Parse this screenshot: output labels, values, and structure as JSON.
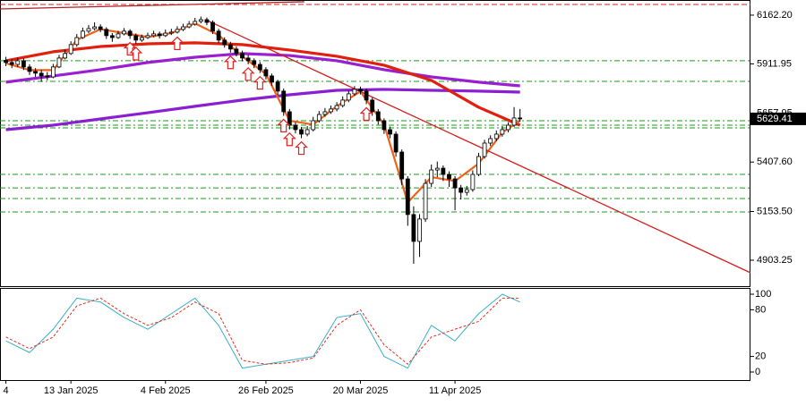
{
  "chart_data": [
    {
      "type": "candlestick",
      "categories": [
        "4",
        null,
        null,
        null,
        null,
        null,
        null,
        null,
        null,
        null,
        null,
        "13 Jan 2025",
        null,
        null,
        null,
        null,
        null,
        null,
        null,
        null,
        null,
        null,
        null,
        null,
        null,
        null,
        null,
        "4 Feb 2025",
        null,
        null,
        null,
        null,
        null,
        null,
        null,
        null,
        null,
        null,
        null,
        null,
        null,
        null,
        null,
        null,
        "26 Feb 2025",
        null,
        null,
        null,
        null,
        null,
        null,
        null,
        null,
        null,
        null,
        null,
        null,
        null,
        null,
        null,
        "20 Mar 2025",
        null,
        null,
        null,
        null,
        null,
        null,
        null,
        null,
        null,
        null,
        null,
        null,
        null,
        null,
        null,
        "11 Apr 2025",
        null,
        null,
        null,
        null,
        null,
        null,
        null,
        null,
        null,
        null,
        null
      ],
      "ohlc": [
        [
          5930,
          5948,
          5900,
          5919
        ],
        [
          5919,
          5935,
          5890,
          5909
        ],
        [
          5909,
          5945,
          5895,
          5928
        ],
        [
          5928,
          5940,
          5880,
          5896
        ],
        [
          5896,
          5910,
          5855,
          5873
        ],
        [
          5873,
          5890,
          5845,
          5864
        ],
        [
          5864,
          5880,
          5820,
          5850
        ],
        [
          5850,
          5870,
          5828,
          5845
        ],
        [
          5845,
          5912,
          5838,
          5896
        ],
        [
          5896,
          5958,
          5890,
          5942
        ],
        [
          5942,
          5985,
          5935,
          5965
        ],
        [
          5965,
          6028,
          5958,
          6011
        ],
        [
          6011,
          6065,
          6000,
          6047
        ],
        [
          6047,
          6098,
          6040,
          6080
        ],
        [
          6080,
          6112,
          6070,
          6093
        ],
        [
          6093,
          6125,
          6085,
          6102
        ],
        [
          6102,
          6115,
          6075,
          6089
        ],
        [
          6089,
          6100,
          6040,
          6057
        ],
        [
          6057,
          6070,
          6025,
          6047
        ],
        [
          6047,
          6082,
          6040,
          6066
        ],
        [
          6066,
          6096,
          6058,
          6080
        ],
        [
          6080,
          6090,
          6040,
          6057
        ],
        [
          6057,
          6068,
          6015,
          6034
        ],
        [
          6034,
          6062,
          6025,
          6047
        ],
        [
          6047,
          6072,
          6040,
          6057
        ],
        [
          6057,
          6082,
          6048,
          6066
        ],
        [
          6066,
          6078,
          6042,
          6057
        ],
        [
          6057,
          6088,
          6050,
          6070
        ],
        [
          6070,
          6092,
          6060,
          6075
        ],
        [
          6075,
          6105,
          6068,
          6089
        ],
        [
          6089,
          6118,
          6080,
          6102
        ],
        [
          6102,
          6132,
          6095,
          6116
        ],
        [
          6116,
          6148,
          6108,
          6130
        ],
        [
          6130,
          6155,
          6120,
          6139
        ],
        [
          6139,
          6150,
          6110,
          6125
        ],
        [
          6125,
          6135,
          6065,
          6080
        ],
        [
          6080,
          6092,
          6018,
          6034
        ],
        [
          6034,
          6048,
          5995,
          6011
        ],
        [
          6011,
          6025,
          5970,
          5988
        ],
        [
          5988,
          6002,
          5950,
          5965
        ],
        [
          5965,
          5980,
          5925,
          5942
        ],
        [
          5942,
          5958,
          5910,
          5928
        ],
        [
          5928,
          5940,
          5890,
          5909
        ],
        [
          5909,
          5922,
          5865,
          5882
        ],
        [
          5882,
          5895,
          5832,
          5850
        ],
        [
          5850,
          5862,
          5800,
          5818
        ],
        [
          5818,
          5830,
          5752,
          5772
        ],
        [
          5772,
          5785,
          5645,
          5666
        ],
        [
          5666,
          5680,
          5575,
          5597
        ],
        [
          5597,
          5612,
          5555,
          5574
        ],
        [
          5574,
          5588,
          5530,
          5551
        ],
        [
          5551,
          5592,
          5540,
          5574
        ],
        [
          5574,
          5640,
          5565,
          5620
        ],
        [
          5620,
          5670,
          5610,
          5652
        ],
        [
          5652,
          5685,
          5640,
          5666
        ],
        [
          5666,
          5698,
          5655,
          5680
        ],
        [
          5680,
          5715,
          5668,
          5698
        ],
        [
          5698,
          5745,
          5688,
          5726
        ],
        [
          5726,
          5775,
          5715,
          5758
        ],
        [
          5758,
          5798,
          5748,
          5781
        ],
        [
          5781,
          5795,
          5755,
          5772
        ],
        [
          5772,
          5785,
          5705,
          5726
        ],
        [
          5726,
          5738,
          5645,
          5666
        ],
        [
          5666,
          5680,
          5600,
          5620
        ],
        [
          5620,
          5632,
          5552,
          5574
        ],
        [
          5574,
          5590,
          5530,
          5551
        ],
        [
          5551,
          5565,
          5435,
          5459
        ],
        [
          5459,
          5472,
          5290,
          5321
        ],
        [
          5321,
          5335,
          5080,
          5138
        ],
        [
          5138,
          5180,
          4885,
          5000
        ],
        [
          5000,
          5140,
          4920,
          5115
        ],
        [
          5115,
          5320,
          5100,
          5298
        ],
        [
          5298,
          5395,
          5280,
          5367
        ],
        [
          5367,
          5410,
          5330,
          5376
        ],
        [
          5376,
          5390,
          5310,
          5344
        ],
        [
          5344,
          5360,
          5280,
          5321
        ],
        [
          5321,
          5335,
          5160,
          5275
        ],
        [
          5275,
          5290,
          5215,
          5252
        ],
        [
          5252,
          5285,
          5235,
          5266
        ],
        [
          5266,
          5365,
          5255,
          5344
        ],
        [
          5344,
          5455,
          5335,
          5436
        ],
        [
          5436,
          5522,
          5425,
          5505
        ],
        [
          5505,
          5545,
          5490,
          5528
        ],
        [
          5528,
          5570,
          5515,
          5551
        ],
        [
          5551,
          5592,
          5538,
          5574
        ],
        [
          5574,
          5612,
          5560,
          5597
        ],
        [
          5597,
          5690,
          5588,
          5634
        ],
        [
          5634,
          5680,
          5615,
          5629.41
        ]
      ],
      "up_color": "#ffffff",
      "down_color": "#000000",
      "xlim": [
        -1,
        126
      ],
      "ylim": [
        4770,
        6240
      ],
      "yticks": [
        {
          "value": 6162.2,
          "label": "6162.20"
        },
        5911.95,
        5657.95,
        {
          "value": 5407.6,
          "label": "5407.60"
        },
        {
          "value": 5153.5,
          "label": "5153.50"
        },
        4903.25
      ],
      "last_price": 5629.41,
      "series": [
        {
          "color": "#9a1fd0",
          "x": [
            0,
            8,
            16,
            24,
            32,
            40,
            48,
            56,
            64,
            72,
            80,
            87
          ],
          "values": [
            5818,
            5850,
            5882,
            5919,
            5946,
            5965,
            5955,
            5928,
            5882,
            5845,
            5818,
            5799
          ]
        },
        {
          "color": "#8a1ed0",
          "x": [
            0,
            8,
            16,
            24,
            32,
            40,
            48,
            56,
            64,
            72,
            80,
            87
          ],
          "values": [
            5574,
            5597,
            5629,
            5661,
            5694,
            5726,
            5753,
            5776,
            5781,
            5776,
            5772,
            5767
          ]
        },
        {
          "color": "#e0200c",
          "x": [
            0,
            8,
            16,
            24,
            32,
            40,
            48,
            56,
            64,
            72,
            80,
            87
          ],
          "values": [
            5928,
            5974,
            6001,
            6015,
            6020,
            6011,
            5983,
            5951,
            5905,
            5827,
            5689,
            5597
          ]
        },
        {
          "color": "#f2601a",
          "x": [
            0,
            4,
            8,
            12,
            16,
            20,
            24,
            28,
            32,
            36,
            40,
            44,
            48,
            52,
            56,
            60,
            64,
            68,
            72,
            76,
            80,
            84,
            87
          ],
          "values": [
            5915,
            5880,
            5880,
            6035,
            6090,
            6070,
            6050,
            6070,
            6120,
            6060,
            5950,
            5860,
            5620,
            5600,
            5695,
            5770,
            5600,
            5200,
            5330,
            5310,
            5400,
            5560,
            5620
          ]
        }
      ],
      "trendlines": [
        {
          "color": "#d42020",
          "x": [
            33.8,
            126
          ],
          "values": [
            6139,
            4839
          ]
        },
        {
          "color": "#b02020",
          "x": [
            -1,
            50.5
          ],
          "values": [
            6194,
            6231
          ]
        }
      ],
      "levels": [
        5928,
        5822,
        5620,
        5597,
        5583,
        5344,
        5275,
        5220,
        5151
      ],
      "level_color": "#1a9a1a",
      "resistance_level": 6217,
      "resistance_color": "#d42020",
      "signals": [
        21,
        22,
        29,
        38,
        41,
        43,
        47,
        48,
        50,
        61
      ],
      "signal_color": "#e02020"
    },
    {
      "type": "line",
      "ylim": [
        0,
        100
      ],
      "yticks": [
        100,
        80,
        20,
        0
      ],
      "xlim": [
        -1,
        126
      ],
      "series": [
        {
          "color": "#3ab0c8",
          "dash": false,
          "x": [
            0,
            4,
            8,
            12,
            16,
            20,
            24,
            28,
            32,
            36,
            40,
            44,
            48,
            52,
            56,
            60,
            64,
            68,
            72,
            76,
            80,
            84,
            87
          ],
          "values": [
            40,
            25,
            55,
            95,
            90,
            70,
            55,
            75,
            95,
            60,
            5,
            10,
            15,
            20,
            70,
            75,
            20,
            5,
            60,
            40,
            75,
            100,
            90
          ]
        },
        {
          "color": "#e03020",
          "dash": true,
          "x": [
            0,
            4,
            8,
            12,
            16,
            20,
            24,
            28,
            32,
            36,
            40,
            44,
            48,
            52,
            56,
            60,
            64,
            68,
            72,
            76,
            80,
            84,
            87
          ],
          "values": [
            45,
            30,
            45,
            85,
            95,
            75,
            60,
            70,
            90,
            75,
            15,
            10,
            12,
            18,
            60,
            80,
            35,
            10,
            45,
            55,
            65,
            95,
            95
          ]
        }
      ]
    }
  ]
}
